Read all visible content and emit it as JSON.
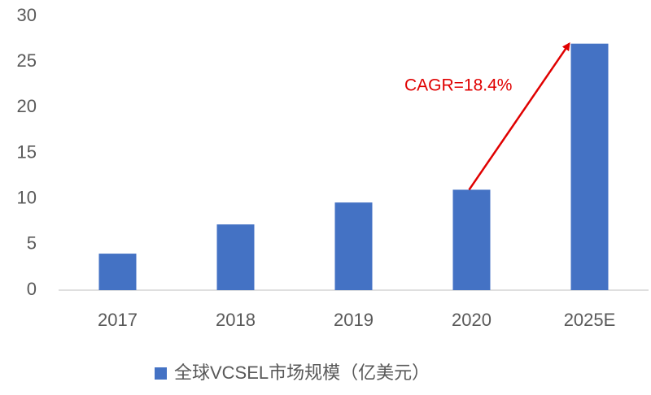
{
  "chart_data": {
    "type": "bar",
    "categories": [
      "2017",
      "2018",
      "2019",
      "2020",
      "2025E"
    ],
    "series": [
      {
        "name": "全球VCSEL市场规模（亿美元）",
        "color": "#4472c4",
        "values": [
          4,
          7.2,
          9.6,
          11,
          27
        ]
      }
    ],
    "ylim": [
      0,
      30
    ],
    "yticks": [
      0,
      5,
      10,
      15,
      20,
      25,
      30
    ],
    "annotation": "CAGR=18.4%",
    "annotation_color": "#e00000",
    "legend": "bottom"
  }
}
